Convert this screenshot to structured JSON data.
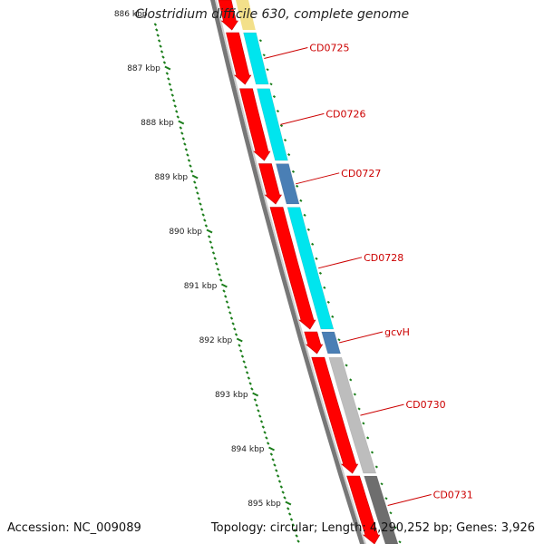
{
  "title": "Clostridium difficile 630, complete genome",
  "accession": "Accession: NC_009089",
  "topology": "Topology: circular; Length: 4,290,252 bp; Genes: 3,926",
  "ruler": {
    "color": "#1a7d1a",
    "labels": [
      {
        "kbp": 886,
        "text": "886 kbp"
      },
      {
        "kbp": 887,
        "text": "887 kbp"
      },
      {
        "kbp": 888,
        "text": "888 kbp"
      },
      {
        "kbp": 889,
        "text": "889 kbp"
      },
      {
        "kbp": 890,
        "text": "890 kbp"
      },
      {
        "kbp": 891,
        "text": "891 kbp"
      },
      {
        "kbp": 892,
        "text": "892 kbp"
      },
      {
        "kbp": 893,
        "text": "893 kbp"
      },
      {
        "kbp": 894,
        "text": "894 kbp"
      },
      {
        "kbp": 895,
        "text": "895 kbp"
      }
    ]
  },
  "genes": [
    {
      "name": "CD0725",
      "start": 886.35,
      "end": 887.3,
      "color": "#00e5ee"
    },
    {
      "name": "CD0726",
      "start": 887.38,
      "end": 888.7,
      "color": "#00e5ee"
    },
    {
      "name": "CD0727",
      "start": 888.76,
      "end": 889.5,
      "color": "#4a7fb5"
    },
    {
      "name": "CD0728",
      "start": 889.56,
      "end": 891.8,
      "color": "#00e5ee"
    },
    {
      "name": "gcvH",
      "start": 891.85,
      "end": 892.25,
      "color": "#4a7fb5"
    },
    {
      "name": "CD0730",
      "start": 892.32,
      "end": 894.45,
      "color": "#bdbdbd"
    },
    {
      "name": "CD0731",
      "start": 894.5,
      "end": 895.8,
      "color": "#6e6e6e"
    }
  ],
  "top_partial_gene": {
    "start": 885.6,
    "end": 886.3,
    "color": "#f3e08a"
  },
  "cds_arrows": [
    {
      "start": 885.6,
      "end": 886.3
    },
    {
      "start": 886.35,
      "end": 887.3
    },
    {
      "start": 887.38,
      "end": 888.7
    },
    {
      "start": 888.76,
      "end": 889.5
    },
    {
      "start": 889.56,
      "end": 891.8
    },
    {
      "start": 891.85,
      "end": 892.25
    },
    {
      "start": 892.32,
      "end": 894.45
    },
    {
      "start": 894.5,
      "end": 895.8
    }
  ],
  "cds_color": "#ff0000",
  "backbone_color": "#777777",
  "label_color": "#cc0000"
}
